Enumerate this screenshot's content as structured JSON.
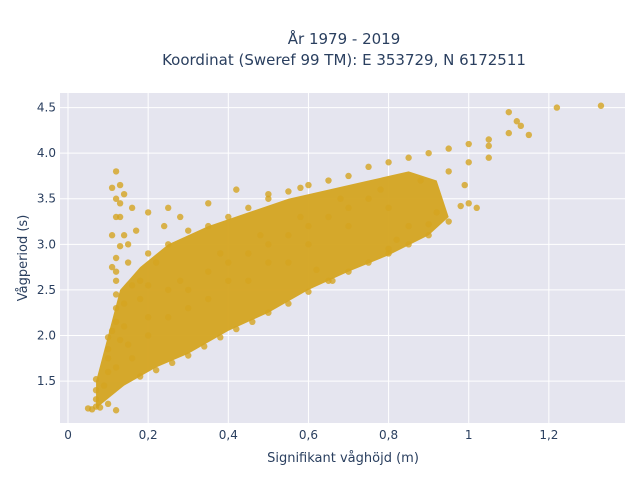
{
  "chart_data": {
    "type": "scatter",
    "title": "År 1979 - 2019",
    "subtitle": "Koordinat (Sweref 99 TM): E 353729, N 6172511",
    "xlabel": "Signifikant våghöjd (m)",
    "ylabel": "Vågperiod (s)",
    "xlim": [
      -0.02,
      1.39
    ],
    "ylim": [
      1.04,
      4.66
    ],
    "x_ticks": [
      0,
      0.2,
      0.4,
      0.6,
      0.8,
      1,
      1.2
    ],
    "x_tick_labels": [
      "0",
      "0,2",
      "0,4",
      "0,6",
      "0,8",
      "1",
      "1,2"
    ],
    "y_ticks": [
      1.5,
      2.0,
      2.5,
      3.0,
      3.5,
      4.0,
      4.5
    ],
    "y_tick_labels": [
      "1.5",
      "2.0",
      "2.5",
      "3.0",
      "3.5",
      "4.0",
      "4.5"
    ],
    "grid": true,
    "marker_color": "#d4a420",
    "plot_background": "#e5e5ef",
    "series": [
      {
        "points": [
          [
            0.05,
            1.2
          ],
          [
            0.06,
            1.19
          ],
          [
            0.07,
            1.22
          ],
          [
            0.08,
            1.21
          ],
          [
            0.1,
            1.25
          ],
          [
            0.12,
            1.18
          ],
          [
            0.07,
            1.3
          ],
          [
            0.07,
            1.4
          ],
          [
            0.07,
            1.52
          ],
          [
            0.09,
            1.45
          ],
          [
            0.1,
            1.6
          ],
          [
            0.1,
            1.75
          ],
          [
            0.1,
            1.85
          ],
          [
            0.1,
            1.98
          ],
          [
            0.11,
            2.05
          ],
          [
            0.12,
            2.15
          ],
          [
            0.12,
            2.3
          ],
          [
            0.12,
            2.45
          ],
          [
            0.12,
            2.6
          ],
          [
            0.12,
            2.7
          ],
          [
            0.11,
            2.75
          ],
          [
            0.12,
            2.85
          ],
          [
            0.11,
            3.1
          ],
          [
            0.12,
            3.3
          ],
          [
            0.12,
            3.5
          ],
          [
            0.11,
            3.62
          ],
          [
            0.12,
            3.8
          ],
          [
            0.13,
            3.65
          ],
          [
            0.14,
            3.55
          ],
          [
            0.13,
            3.3
          ],
          [
            0.13,
            3.45
          ],
          [
            0.14,
            3.1
          ],
          [
            0.13,
            2.98
          ],
          [
            0.15,
            2.8
          ],
          [
            0.16,
            3.4
          ],
          [
            0.17,
            3.15
          ],
          [
            0.2,
            3.35
          ],
          [
            0.25,
            3.4
          ],
          [
            0.18,
            1.55
          ],
          [
            0.22,
            1.62
          ],
          [
            0.26,
            1.7
          ],
          [
            0.3,
            1.78
          ],
          [
            0.34,
            1.88
          ],
          [
            0.38,
            1.98
          ],
          [
            0.42,
            2.07
          ],
          [
            0.46,
            2.15
          ],
          [
            0.5,
            2.25
          ],
          [
            0.55,
            2.35
          ],
          [
            0.6,
            2.48
          ],
          [
            0.65,
            2.6
          ],
          [
            0.7,
            2.7
          ],
          [
            0.75,
            2.8
          ],
          [
            0.8,
            2.9
          ],
          [
            0.85,
            3.0
          ],
          [
            0.9,
            3.1
          ],
          [
            0.95,
            3.25
          ],
          [
            0.18,
            2.6
          ],
          [
            0.2,
            2.9
          ],
          [
            0.22,
            2.8
          ],
          [
            0.25,
            3.0
          ],
          [
            0.3,
            3.15
          ],
          [
            0.35,
            3.2
          ],
          [
            0.4,
            3.3
          ],
          [
            0.45,
            3.4
          ],
          [
            0.5,
            3.5
          ],
          [
            0.55,
            3.58
          ],
          [
            0.6,
            3.65
          ],
          [
            0.65,
            3.7
          ],
          [
            0.7,
            3.75
          ],
          [
            0.75,
            3.85
          ],
          [
            0.8,
            3.9
          ],
          [
            0.85,
            3.95
          ],
          [
            0.9,
            4.0
          ],
          [
            0.95,
            4.05
          ],
          [
            1.0,
            4.1
          ],
          [
            1.05,
            4.15
          ],
          [
            1.1,
            4.22
          ],
          [
            1.13,
            4.3
          ],
          [
            1.12,
            4.35
          ],
          [
            1.1,
            4.45
          ],
          [
            1.15,
            4.2
          ],
          [
            1.22,
            4.5
          ],
          [
            1.33,
            4.52
          ],
          [
            0.98,
            3.42
          ],
          [
            1.0,
            3.45
          ],
          [
            1.02,
            3.4
          ],
          [
            0.99,
            3.65
          ],
          [
            1.0,
            3.9
          ],
          [
            1.05,
            4.08
          ],
          [
            0.92,
            3.35
          ],
          [
            0.85,
            3.2
          ],
          [
            0.9,
            3.22
          ],
          [
            0.8,
            2.95
          ],
          [
            0.82,
            3.05
          ],
          [
            0.62,
            2.72
          ],
          [
            0.66,
            2.6
          ],
          [
            0.3,
            2.3
          ],
          [
            0.4,
            2.6
          ],
          [
            0.5,
            2.8
          ],
          [
            0.6,
            3.0
          ],
          [
            0.7,
            3.2
          ],
          [
            0.8,
            3.4
          ],
          [
            0.25,
            2.5
          ],
          [
            0.35,
            2.7
          ],
          [
            0.45,
            2.9
          ],
          [
            0.55,
            3.1
          ],
          [
            0.65,
            3.3
          ],
          [
            0.75,
            3.5
          ],
          [
            0.2,
            2.2
          ],
          [
            0.3,
            2.5
          ],
          [
            0.4,
            2.8
          ],
          [
            0.5,
            3.0
          ],
          [
            0.6,
            3.2
          ],
          [
            0.7,
            3.4
          ],
          [
            0.15,
            1.9
          ],
          [
            0.2,
            2.0
          ],
          [
            0.25,
            2.2
          ],
          [
            0.35,
            2.4
          ],
          [
            0.45,
            2.6
          ],
          [
            0.55,
            2.8
          ],
          [
            0.18,
            2.4
          ],
          [
            0.28,
            2.6
          ],
          [
            0.38,
            2.9
          ],
          [
            0.48,
            3.1
          ],
          [
            0.58,
            3.3
          ],
          [
            0.68,
            3.5
          ],
          [
            0.78,
            3.6
          ],
          [
            0.88,
            3.7
          ],
          [
            0.95,
            3.8
          ],
          [
            1.05,
            3.95
          ],
          [
            0.42,
            3.6
          ],
          [
            0.5,
            3.55
          ],
          [
            0.58,
            3.62
          ],
          [
            0.35,
            3.45
          ],
          [
            0.28,
            3.3
          ],
          [
            0.24,
            3.2
          ],
          [
            0.15,
            3.0
          ],
          [
            0.16,
            2.55
          ],
          [
            0.2,
            2.55
          ],
          [
            0.12,
            1.65
          ],
          [
            0.13,
            1.95
          ],
          [
            0.14,
            2.1
          ],
          [
            0.14,
            2.35
          ],
          [
            0.16,
            1.75
          ]
        ]
      }
    ]
  }
}
